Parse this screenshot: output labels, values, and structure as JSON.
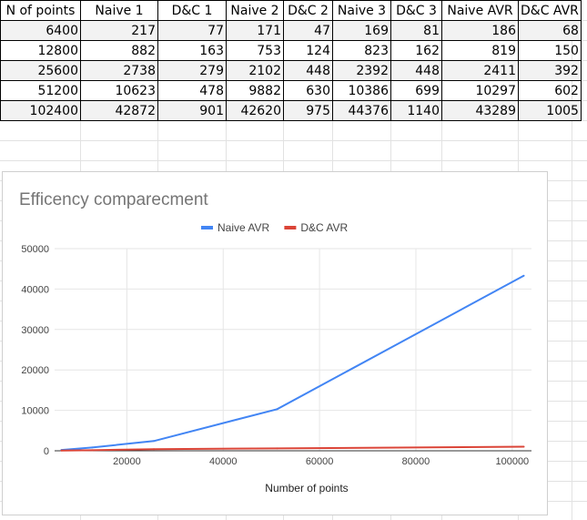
{
  "table": {
    "headers": [
      "N of points",
      "Naive 1",
      "D&C 1",
      "Naive 2",
      "D&C 2",
      "Naive 3",
      "D&C 3",
      "Naive AVR",
      "D&C AVR"
    ],
    "rows": [
      [
        "6400",
        "217",
        "77",
        "171",
        "47",
        "169",
        "81",
        "186",
        "68"
      ],
      [
        "12800",
        "882",
        "163",
        "753",
        "124",
        "823",
        "162",
        "819",
        "150"
      ],
      [
        "25600",
        "2738",
        "279",
        "2102",
        "448",
        "2392",
        "448",
        "2411",
        "392"
      ],
      [
        "51200",
        "10623",
        "478",
        "9882",
        "630",
        "10386",
        "699",
        "10297",
        "602"
      ],
      [
        "102400",
        "42872",
        "901",
        "42620",
        "975",
        "44376",
        "1140",
        "43289",
        "1005"
      ]
    ]
  },
  "chart_data": {
    "type": "line",
    "title": "Efficency comparecment",
    "xlabel": "Number of points",
    "ylabel": "",
    "x": [
      6400,
      12800,
      25600,
      51200,
      102400
    ],
    "series": [
      {
        "name": "Naive AVR",
        "color": "#4285f4",
        "values": [
          186,
          819,
          2411,
          10297,
          43289
        ]
      },
      {
        "name": "D&C AVR",
        "color": "#db4437",
        "values": [
          68,
          150,
          392,
          602,
          1005
        ]
      }
    ],
    "xlim": [
      5000,
      104000
    ],
    "ylim": [
      0,
      50000
    ],
    "xticks": [
      20000,
      40000,
      60000,
      80000,
      100000
    ],
    "yticks": [
      0,
      10000,
      20000,
      30000,
      40000,
      50000
    ],
    "legend": "top",
    "grid": true
  }
}
